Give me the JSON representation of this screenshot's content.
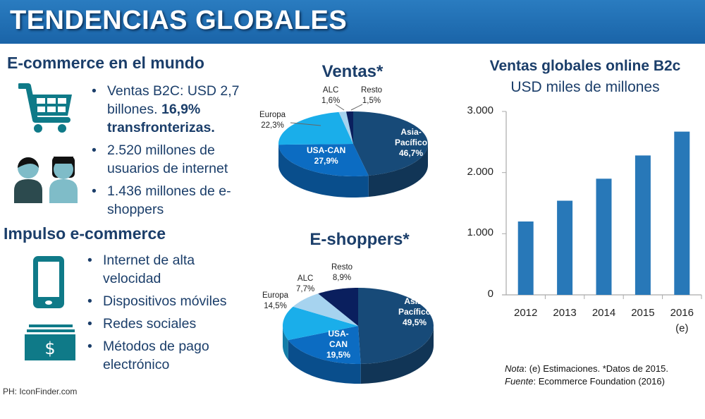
{
  "header": {
    "title": "TENDENCIAS GLOBALES"
  },
  "left": {
    "section1": {
      "title": "E-commerce en el mundo",
      "bullets": [
        {
          "text": "Ventas B2C: USD 2,7 billones. ",
          "bold": "16,9% transfronterizas."
        },
        {
          "text": "2.520 millones de usuarios de internet"
        },
        {
          "text": "1.436 millones de e-shoppers"
        }
      ],
      "icons": [
        "shopping-cart-icon",
        "users-icon"
      ]
    },
    "section2": {
      "title": "Impulso e-commerce",
      "bullets": [
        {
          "text": "Internet de alta velocidad"
        },
        {
          "text": "Dispositivos móviles"
        },
        {
          "text": "Redes sociales"
        },
        {
          "text": "Métodos de pago electrónico"
        }
      ],
      "icons": [
        "smartphone-icon",
        "money-icon"
      ]
    },
    "credit": "PH: IconFinder.com"
  },
  "colors": {
    "Asia-Pacífico": "#174a78",
    "USA-CAN": "#0c6cc2",
    "Europa": "#1aaeea",
    "ALC": "#a6d3ef",
    "Resto": "#0a1f5e",
    "bar": "#2878b8",
    "header": "#1c6db5"
  },
  "chart_data": [
    {
      "type": "pie",
      "title": "Ventas*",
      "categories": [
        "Asia-Pacífico",
        "USA-CAN",
        "Europa",
        "ALC",
        "Resto"
      ],
      "label_lines": [
        [
          "Asia-",
          "Pacífico"
        ],
        [
          "USA-CAN"
        ],
        [
          "Europa"
        ],
        [
          "ALC"
        ],
        [
          "Resto"
        ]
      ],
      "values": [
        46.7,
        27.9,
        22.3,
        1.6,
        1.5
      ],
      "labels": [
        "46,7%",
        "27,9%",
        "22,3%",
        "1,6%",
        "1,5%"
      ]
    },
    {
      "type": "pie",
      "title": "E-shoppers*",
      "categories": [
        "Asia-Pacífico",
        "USA-CAN",
        "Europa",
        "ALC",
        "Resto"
      ],
      "label_lines": [
        [
          "Asia-",
          "Pacífico"
        ],
        [
          "USA-",
          "CAN"
        ],
        [
          "Europa"
        ],
        [
          "ALC"
        ],
        [
          "Resto"
        ]
      ],
      "values": [
        49.5,
        19.5,
        14.5,
        7.7,
        8.9
      ],
      "labels": [
        "49,5%",
        "19,5%",
        "14,5%",
        "7,7%",
        "8,9%"
      ]
    },
    {
      "type": "bar",
      "title": "Ventas globales online B2c",
      "subtitle": "USD miles de millones",
      "categories": [
        "2012",
        "2013",
        "2014",
        "2015",
        "2016"
      ],
      "category_notes": [
        "",
        "",
        "",
        "",
        "(e)"
      ],
      "values": [
        1200,
        1540,
        1900,
        2280,
        2670
      ],
      "ylim": [
        0,
        3000
      ],
      "yticks": [
        0,
        1000,
        2000,
        3000
      ],
      "ytick_labels": [
        "0",
        "1.000",
        "2.000",
        "3.000"
      ],
      "grid": false
    }
  ],
  "notes": {
    "nota_label": "Nota",
    "nota_text": ": (e) Estimaciones. *Datos de 2015.",
    "fuente_label": "Fuente",
    "fuente_text": ": Ecommerce Foundation (2016)"
  }
}
